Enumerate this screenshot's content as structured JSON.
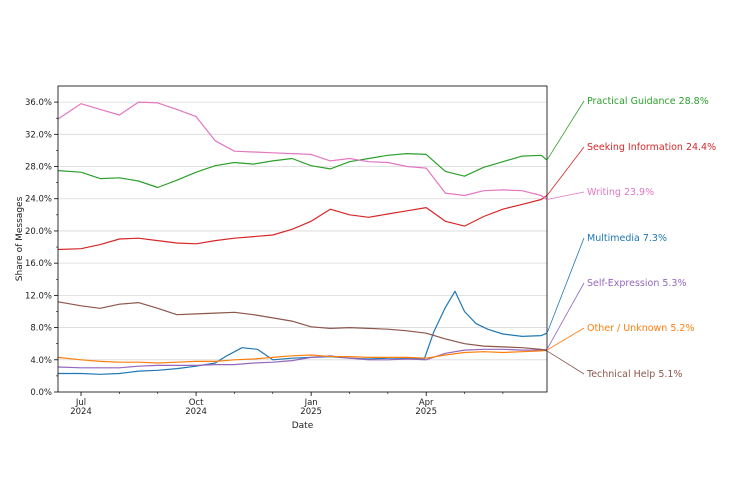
{
  "chart_data": {
    "type": "line",
    "xlabel": "Date",
    "ylabel": "Share of Messages",
    "x_range": [
      0,
      12.15
    ],
    "ylim": [
      0,
      38
    ],
    "grid": "horizontal",
    "x_ticks": [
      {
        "month": 0.0,
        "month_label": "Jul",
        "year_label": "2024"
      },
      {
        "month": 3.0,
        "month_label": "Oct",
        "year_label": "2024"
      },
      {
        "month": 6.0,
        "month_label": "Jan",
        "year_label": "2025"
      },
      {
        "month": 9.0,
        "month_label": "Apr",
        "year_label": "2025"
      }
    ],
    "y_ticks": [
      {
        "value": 0,
        "label": "0.0%"
      },
      {
        "value": 4,
        "label": "4.0%"
      },
      {
        "value": 8,
        "label": "8.0%"
      },
      {
        "value": 12,
        "label": "12.0%"
      },
      {
        "value": 16,
        "label": "16.0%"
      },
      {
        "value": 20,
        "label": "20.0%"
      },
      {
        "value": 24,
        "label": "24.0%"
      },
      {
        "value": 28,
        "label": "28.0%"
      },
      {
        "value": 32,
        "label": "32.0%"
      },
      {
        "value": 36,
        "label": "36.0%"
      }
    ],
    "series": [
      {
        "name": "Practical Guidance",
        "label": "Practical Guidance  28.8%",
        "color": "#2ca02c",
        "end_value": 28.8,
        "x": [
          -0.6,
          0,
          0.5,
          1,
          1.5,
          2,
          2.5,
          3,
          3.5,
          4,
          4.5,
          5,
          5.5,
          6,
          6.5,
          7,
          7.5,
          8,
          8.5,
          9,
          9.5,
          10,
          10.5,
          11,
          11.5,
          12,
          12.15
        ],
        "y": [
          27.5,
          27.3,
          26.5,
          26.6,
          26.2,
          25.4,
          26.3,
          27.3,
          28.1,
          28.5,
          28.3,
          28.7,
          29.0,
          28.1,
          27.7,
          28.6,
          29.0,
          29.4,
          29.6,
          29.5,
          27.4,
          26.8,
          27.9,
          28.6,
          29.3,
          29.4,
          28.8
        ]
      },
      {
        "name": "Seeking Information",
        "label": "Seeking Information  24.4%",
        "color": "#d62728",
        "end_value": 24.4,
        "x": [
          -0.6,
          0,
          0.5,
          1,
          1.5,
          2,
          2.5,
          3,
          3.5,
          4,
          4.5,
          5,
          5.5,
          6,
          6.5,
          7,
          7.5,
          8,
          8.5,
          9,
          9.5,
          10,
          10.5,
          11,
          11.5,
          12,
          12.15
        ],
        "y": [
          17.7,
          17.8,
          18.3,
          19.0,
          19.1,
          18.8,
          18.5,
          18.4,
          18.8,
          19.1,
          19.3,
          19.5,
          20.2,
          21.2,
          22.7,
          22.0,
          21.7,
          22.1,
          22.5,
          22.9,
          21.2,
          20.6,
          21.8,
          22.7,
          23.3,
          23.9,
          24.4
        ]
      },
      {
        "name": "Writing",
        "label": "Writing  23.9%",
        "color": "#e377c2",
        "end_value": 23.9,
        "x": [
          -0.6,
          0,
          0.5,
          1,
          1.5,
          2,
          2.5,
          3,
          3.5,
          4,
          4.5,
          5,
          5.5,
          6,
          6.5,
          7,
          7.5,
          8,
          8.5,
          9,
          9.5,
          10,
          10.5,
          11,
          11.5,
          12,
          12.15
        ],
        "y": [
          33.9,
          35.8,
          35.1,
          34.4,
          36.0,
          35.9,
          35.1,
          34.2,
          31.2,
          29.9,
          29.8,
          29.7,
          29.6,
          29.5,
          28.7,
          29.0,
          28.6,
          28.5,
          28.0,
          27.8,
          24.7,
          24.4,
          25.0,
          25.1,
          25.0,
          24.4,
          23.9
        ]
      },
      {
        "name": "Multimedia",
        "label": "Multimedia  7.3%",
        "color": "#1f77b4",
        "end_value": 7.3,
        "x": [
          -0.6,
          0,
          0.5,
          1,
          1.5,
          2,
          2.5,
          3,
          3.5,
          3.8,
          4.2,
          4.6,
          5.0,
          5.5,
          6,
          6.5,
          7,
          7.5,
          8,
          8.5,
          8.95,
          9.2,
          9.5,
          9.75,
          10.0,
          10.3,
          10.6,
          11,
          11.5,
          12,
          12.15
        ],
        "y": [
          2.3,
          2.3,
          2.2,
          2.3,
          2.6,
          2.7,
          2.9,
          3.2,
          3.6,
          4.5,
          5.5,
          5.3,
          4.0,
          4.2,
          4.3,
          4.4,
          4.2,
          4.1,
          4.2,
          4.2,
          4.1,
          7.5,
          10.5,
          12.5,
          10.0,
          8.5,
          7.8,
          7.2,
          6.9,
          7.0,
          7.3
        ]
      },
      {
        "name": "Self-Expression",
        "label": "Self-Expression  5.3%",
        "color": "#9467bd",
        "end_value": 5.3,
        "x": [
          -0.6,
          0,
          0.5,
          1,
          1.5,
          2,
          2.5,
          3,
          3.5,
          4,
          4.5,
          5,
          5.5,
          6,
          6.5,
          7,
          7.5,
          8,
          8.5,
          9,
          9.5,
          10,
          10.5,
          11,
          11.5,
          12,
          12.15
        ],
        "y": [
          3.1,
          3.0,
          3.0,
          3.0,
          3.2,
          3.3,
          3.3,
          3.3,
          3.4,
          3.4,
          3.6,
          3.7,
          3.9,
          4.3,
          4.5,
          4.2,
          4.0,
          4.0,
          4.1,
          4.0,
          4.8,
          5.2,
          5.3,
          5.3,
          5.2,
          5.2,
          5.3
        ]
      },
      {
        "name": "Other / Unknown",
        "label": "Other / Unknown  5.2%",
        "color": "#ff7f0e",
        "end_value": 5.2,
        "x": [
          -0.6,
          0,
          0.5,
          1,
          1.5,
          2,
          2.5,
          3,
          3.5,
          4,
          4.5,
          5,
          5.5,
          6,
          6.5,
          7,
          7.5,
          8,
          8.5,
          9,
          9.5,
          10,
          10.5,
          11,
          11.5,
          12,
          12.15
        ],
        "y": [
          4.3,
          4.0,
          3.8,
          3.7,
          3.7,
          3.6,
          3.7,
          3.8,
          3.8,
          4.0,
          4.1,
          4.3,
          4.5,
          4.6,
          4.4,
          4.4,
          4.3,
          4.3,
          4.3,
          4.2,
          4.6,
          4.9,
          5.0,
          4.9,
          5.0,
          5.1,
          5.2
        ]
      },
      {
        "name": "Technical Help",
        "label": "Technical Help  5.1%",
        "color": "#8c564b",
        "end_value": 5.1,
        "x": [
          -0.6,
          0,
          0.5,
          1,
          1.5,
          2,
          2.5,
          3,
          3.5,
          4,
          4.5,
          5,
          5.5,
          6,
          6.5,
          7,
          7.5,
          8,
          8.5,
          9,
          9.5,
          10,
          10.5,
          11,
          11.5,
          12,
          12.15
        ],
        "y": [
          11.2,
          10.7,
          10.4,
          10.9,
          11.1,
          10.4,
          9.6,
          9.7,
          9.8,
          9.9,
          9.6,
          9.2,
          8.8,
          8.1,
          7.9,
          8.0,
          7.9,
          7.8,
          7.6,
          7.3,
          6.6,
          6.0,
          5.7,
          5.6,
          5.5,
          5.3,
          5.1
        ]
      }
    ]
  }
}
